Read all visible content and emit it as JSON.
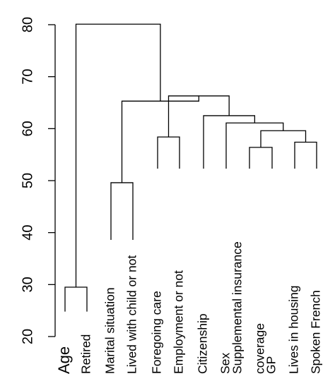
{
  "chart_data": {
    "type": "dendrogram",
    "title": "",
    "xlabel": "",
    "ylabel": "",
    "ylim": [
      20,
      80
    ],
    "y_ticks": [
      20,
      30,
      40,
      50,
      60,
      70,
      80
    ],
    "leaves": [
      "Age",
      "Retired",
      "Marital situation",
      "Lived with child or not",
      "Foregoing care",
      "Employment or not",
      "Citizenship",
      "Sex",
      "Supplemental insurance\ncoverage",
      "GP",
      "Lives in housing",
      "Spoken French"
    ],
    "leaf_heights": [
      24.8,
      24.8,
      38.6,
      38.6,
      52.3,
      52.3,
      52.3,
      52.3,
      52.3,
      52.3,
      52.3,
      52.3
    ],
    "merges": [
      {
        "left": "Age",
        "right": "Retired",
        "height": 29.5
      },
      {
        "left": "Marital situation",
        "right": "Lived with child or not",
        "height": 49.6
      },
      {
        "left": "Foregoing care",
        "right": "Employment or not",
        "height": 58.4
      },
      {
        "left": "Supplemental insurance\ncoverage",
        "right": "GP",
        "height": 56.4
      },
      {
        "left": "Lives in housing",
        "right": "Spoken French",
        "height": 57.4
      },
      {
        "left": "{Supplemental insurance coverage, GP}",
        "right": "{Lives in housing, Spoken French}",
        "height": 59.6
      },
      {
        "left": "Sex",
        "right": "{Supplemental insurance coverage, GP, Lives in housing, Spoken French}",
        "height": 61.1
      },
      {
        "left": "Citizenship",
        "right": "{Sex, ...}",
        "height": 62.5
      },
      {
        "left": "{Foregoing care, Employment or not}",
        "right": "{Citizenship, ...}",
        "height": 66.3
      },
      {
        "left": "{Marital situation, Lived with child or not}",
        "right": "{Foregoing care, ...}",
        "height": 65.3
      },
      {
        "left": "{Age, Retired}",
        "right": "{Marital situation, ...}",
        "height": 80.1
      }
    ]
  }
}
